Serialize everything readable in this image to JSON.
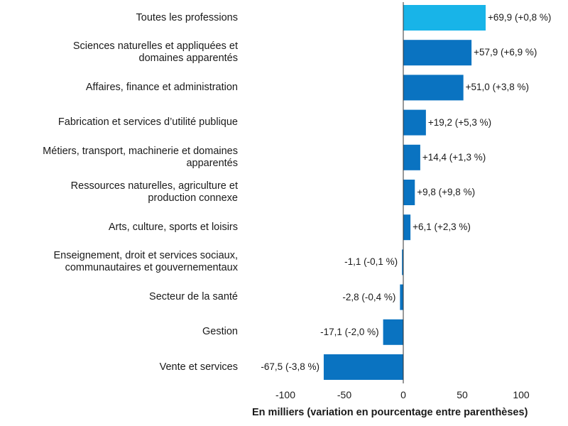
{
  "chart_data": {
    "type": "bar",
    "orientation": "horizontal",
    "categories": [
      "Toutes les professions",
      "Sciences naturelles et appliquées et\ndomaines apparentés",
      "Affaires, finance et administration",
      "Fabrication et services d’utilité publique",
      "Métiers, transport, machinerie et domaines\napparentés",
      "Ressources naturelles, agriculture et\nproduction connexe",
      "Arts, culture, sports et loisirs",
      "Enseignement, droit et services sociaux,\ncommunautaires et gouvernementaux",
      "Secteur de la santé",
      "Gestion",
      "Vente et services"
    ],
    "values": [
      69.9,
      57.9,
      51.0,
      19.2,
      14.4,
      9.8,
      6.1,
      -1.1,
      -2.8,
      -17.1,
      -67.5
    ],
    "value_labels": [
      "+69,9 (+0,8 %)",
      "+57,9 (+6,9 %)",
      "+51,0 (+3,8 %)",
      "+19,2 (+5,3 %)",
      "+14,4 (+1,3 %)",
      "+9,8 (+9,8 %)",
      "+6,1 (+2,3 %)",
      "-1,1 (-0,1 %)",
      "-2,8 (-0,4 %)",
      "-17,1 (-2,0 %)",
      "-67,5 (-3,8 %)"
    ],
    "xticks": [
      "-100",
      "-50",
      "0",
      "50",
      "100"
    ],
    "xtick_values": [
      -100,
      -50,
      0,
      50,
      100
    ],
    "xlim": [
      -137,
      140
    ],
    "xlabel": "En milliers (variation en pourcentage entre parenthèses)",
    "ylabel": "",
    "grid": false,
    "colors": {
      "highlight": "#18B4E8",
      "bar": "#0A73C1",
      "axis": "#333333"
    }
  }
}
